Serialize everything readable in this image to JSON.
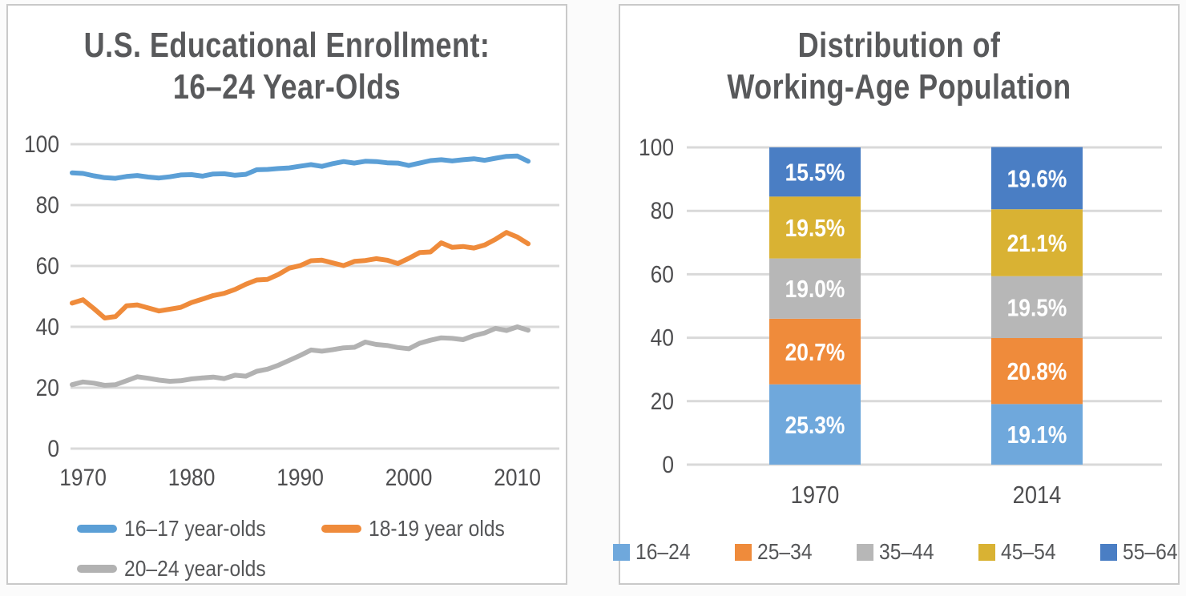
{
  "page": {
    "background": "#FBFBFB",
    "panel_border": "#C9C9C9",
    "title_color": "#58595B",
    "tick_color": "#4E4E50",
    "gridline_color": "#D9D9D9"
  },
  "left_panel": {
    "title_lines": [
      "U.S. Educational Enrollment:",
      "16–24 Year-Olds"
    ]
  },
  "right_panel": {
    "title_lines": [
      "Distribution of",
      "Working-Age Population"
    ]
  },
  "chart_data": [
    {
      "type": "line",
      "title": "U.S. Educational Enrollment: 16–24 Year-Olds",
      "xlabel": "",
      "ylabel": "",
      "ylim": [
        0,
        100
      ],
      "yticks": [
        0,
        20,
        40,
        60,
        80,
        100
      ],
      "xticks": [
        1970,
        1980,
        1990,
        2000,
        2010
      ],
      "grid": true,
      "legend_position": "bottom",
      "x": [
        1969,
        1970,
        1971,
        1972,
        1973,
        1974,
        1975,
        1976,
        1977,
        1978,
        1979,
        1980,
        1981,
        1982,
        1983,
        1984,
        1985,
        1986,
        1987,
        1988,
        1989,
        1990,
        1991,
        1992,
        1993,
        1994,
        1995,
        1996,
        1997,
        1998,
        1999,
        2000,
        2001,
        2002,
        2003,
        2004,
        2005,
        2006,
        2007,
        2008,
        2009,
        2010,
        2011
      ],
      "series": [
        {
          "name": "16–17 year-olds",
          "color": "#5B9FD6",
          "values": [
            90.6,
            90.4,
            89.6,
            89.0,
            88.8,
            89.4,
            89.7,
            89.2,
            88.9,
            89.3,
            89.9,
            90.0,
            89.5,
            90.2,
            90.3,
            89.8,
            90.1,
            91.6,
            91.7,
            92.0,
            92.2,
            92.8,
            93.3,
            92.7,
            93.6,
            94.3,
            93.8,
            94.4,
            94.3,
            93.9,
            93.8,
            93.0,
            93.8,
            94.6,
            94.9,
            94.5,
            94.9,
            95.2,
            94.7,
            95.4,
            96.0,
            96.1,
            94.4
          ]
        },
        {
          "name": "18-19 year olds",
          "color": "#EF8B3B",
          "values": [
            47.8,
            48.9,
            46.0,
            42.9,
            43.4,
            46.9,
            47.2,
            46.2,
            45.2,
            45.8,
            46.4,
            48.0,
            49.1,
            50.3,
            51.0,
            52.3,
            54.0,
            55.4,
            55.6,
            57.2,
            59.3,
            60.1,
            61.7,
            61.9,
            61.0,
            60.1,
            61.5,
            61.8,
            62.4,
            61.9,
            60.8,
            62.5,
            64.4,
            64.6,
            67.6,
            66.1,
            66.4,
            65.9,
            66.9,
            68.8,
            71.0,
            69.5,
            67.3
          ]
        },
        {
          "name": "20–24 year-olds",
          "color": "#B2B2B2",
          "values": [
            21.0,
            21.9,
            21.5,
            20.8,
            21.0,
            22.3,
            23.6,
            23.1,
            22.5,
            22.1,
            22.3,
            22.9,
            23.2,
            23.5,
            23.0,
            24.1,
            23.8,
            25.4,
            26.1,
            27.4,
            29.0,
            30.6,
            32.4,
            32.0,
            32.5,
            33.1,
            33.3,
            35.0,
            34.2,
            33.9,
            33.2,
            32.8,
            34.6,
            35.6,
            36.4,
            36.2,
            35.8,
            37.1,
            38.0,
            39.5,
            38.8,
            40.0,
            38.9
          ]
        }
      ]
    },
    {
      "type": "bar",
      "subtype": "stacked",
      "title": "Distribution of Working-Age Population",
      "xlabel": "",
      "ylabel": "",
      "ylim": [
        0,
        100
      ],
      "yticks": [
        0,
        20,
        40,
        60,
        80,
        100
      ],
      "grid": true,
      "legend_position": "bottom",
      "categories": [
        "1970",
        "2014"
      ],
      "series": [
        {
          "name": "16–24",
          "color": "#6FA8DC",
          "values": [
            25.3,
            19.1
          ],
          "labels": [
            "25.3%",
            "19.1%"
          ]
        },
        {
          "name": "25–34",
          "color": "#EF8B3B",
          "values": [
            20.7,
            20.8
          ],
          "labels": [
            "20.7%",
            "20.8%"
          ]
        },
        {
          "name": "35–44",
          "color": "#B7B7B7",
          "values": [
            19.0,
            19.5
          ],
          "labels": [
            "19.0%",
            "19.5%"
          ]
        },
        {
          "name": "45–54",
          "color": "#D9B233",
          "values": [
            19.5,
            21.1
          ],
          "labels": [
            "19.5%",
            "21.1%"
          ]
        },
        {
          "name": "55–64",
          "color": "#4A7EC4",
          "values": [
            15.5,
            19.6
          ],
          "labels": [
            "15.5%",
            "19.6%"
          ]
        }
      ]
    }
  ]
}
